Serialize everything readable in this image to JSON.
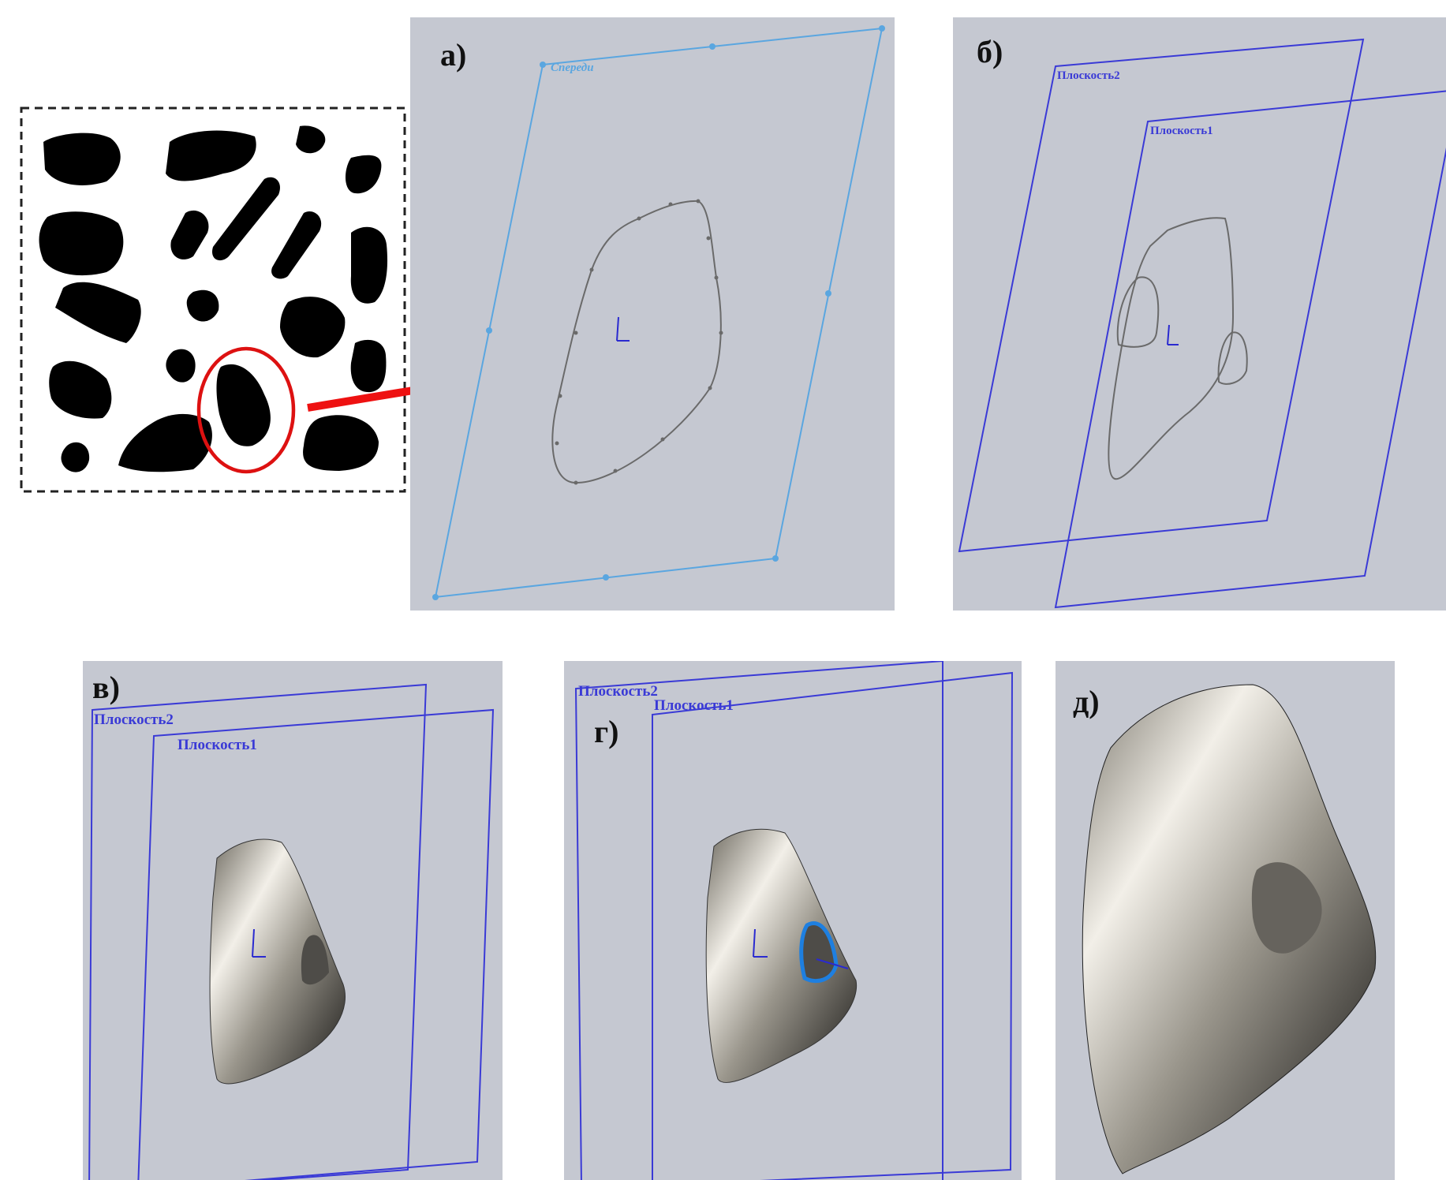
{
  "panels": {
    "a": {
      "label": "а)",
      "plane_label": "Спереди"
    },
    "b": {
      "label": "б)",
      "plane2_label": "Плоскость2",
      "plane1_label": "Плоскость1"
    },
    "v": {
      "label": "в)",
      "plane2_label": "Плоскость2",
      "plane1_label": "Плоскость1"
    },
    "g": {
      "label": "г)",
      "plane2_label": "Плоскость2",
      "plane1_label": "Плоскость1"
    },
    "d": {
      "label": "д)"
    }
  },
  "colors": {
    "viewport_bg": "#c5c8d1",
    "plane_a": "#5aa6e0",
    "plane_blue": "#3a3ad6",
    "sketch_gray": "#6a6a6a",
    "arrow_red": "#ee1111",
    "highlight_circle": "#dd1111",
    "selection_blue": "#1e7fe0"
  }
}
